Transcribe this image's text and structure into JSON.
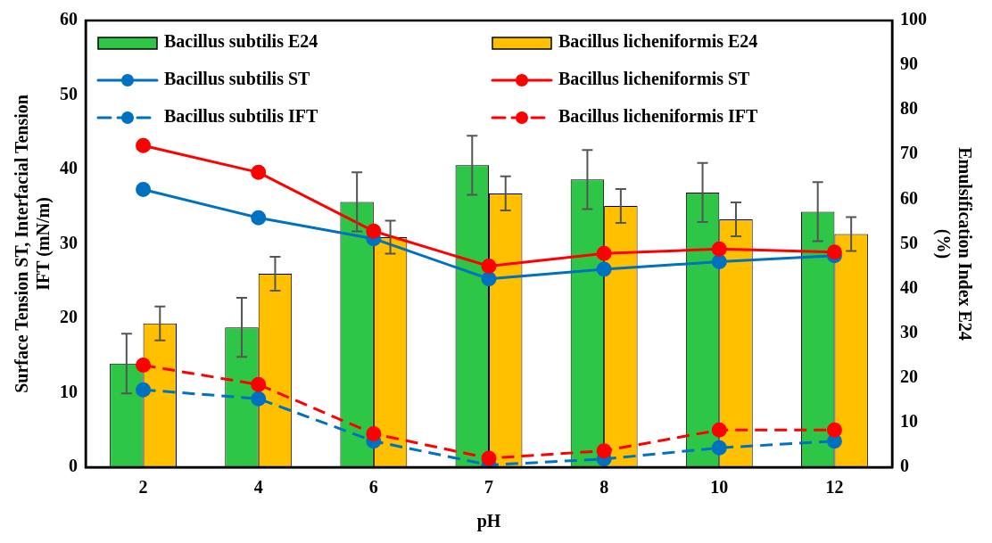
{
  "chart_data": {
    "type": "bar",
    "xlabel": "pH",
    "ylabel": "Surface Tension ST, Interfacial Tension IFT (mN/m)",
    "y2label": "Emulsification Index E24 (%)",
    "categories": [
      "2",
      "4",
      "6",
      "7",
      "8",
      "10",
      "12"
    ],
    "series": [
      {
        "name": "Bacillus subtilis E24",
        "axis": "y2",
        "color": "#2ec646",
        "values": [
          23.2,
          31.3,
          59.4,
          67.6,
          64.4,
          61.5,
          57.2
        ],
        "errors": [
          6.7,
          6.6,
          6.6,
          6.6,
          6.6,
          6.6,
          6.6
        ]
      },
      {
        "name": "Bacillus licheniformis E24",
        "axis": "y2",
        "color": "#ffc000",
        "values": [
          32.2,
          43.3,
          51.5,
          61.3,
          58.5,
          55.5,
          52.2
        ],
        "errors": [
          3.8,
          3.8,
          3.7,
          3.8,
          3.8,
          3.8,
          3.8
        ]
      },
      {
        "name": "Bacillus subtilis ST",
        "type": "line",
        "color": "#0070c0",
        "line_style": "solid",
        "values": [
          37.3,
          33.5,
          30.7,
          25.3,
          26.6,
          27.6,
          28.4
        ]
      },
      {
        "name": "Bacillus licheniformis ST",
        "type": "line",
        "color": "#ff0000",
        "line_style": "solid",
        "values": [
          43.2,
          39.6,
          31.7,
          27.0,
          28.7,
          29.3,
          28.9
        ]
      },
      {
        "name": "Bacillus subtilis IFT",
        "type": "line",
        "color": "#0070c0",
        "line_style": "dashed",
        "values": [
          10.4,
          9.2,
          3.5,
          0.3,
          1.1,
          2.6,
          3.5
        ]
      },
      {
        "name": "Bacillus licheniformis IFT",
        "type": "line",
        "color": "#ff0000",
        "line_style": "dashed",
        "values": [
          13.7,
          11.1,
          4.5,
          1.2,
          2.2,
          5.0,
          5.0
        ]
      }
    ],
    "ylim": [
      0,
      60
    ],
    "yticks": [
      0,
      10,
      20,
      30,
      40,
      50,
      60
    ],
    "y2lim": [
      0,
      100
    ],
    "y2ticks": [
      0,
      10,
      20,
      30,
      40,
      50,
      60,
      70,
      80,
      90,
      100
    ],
    "grid": false,
    "legend": "top",
    "marker": "circle"
  }
}
